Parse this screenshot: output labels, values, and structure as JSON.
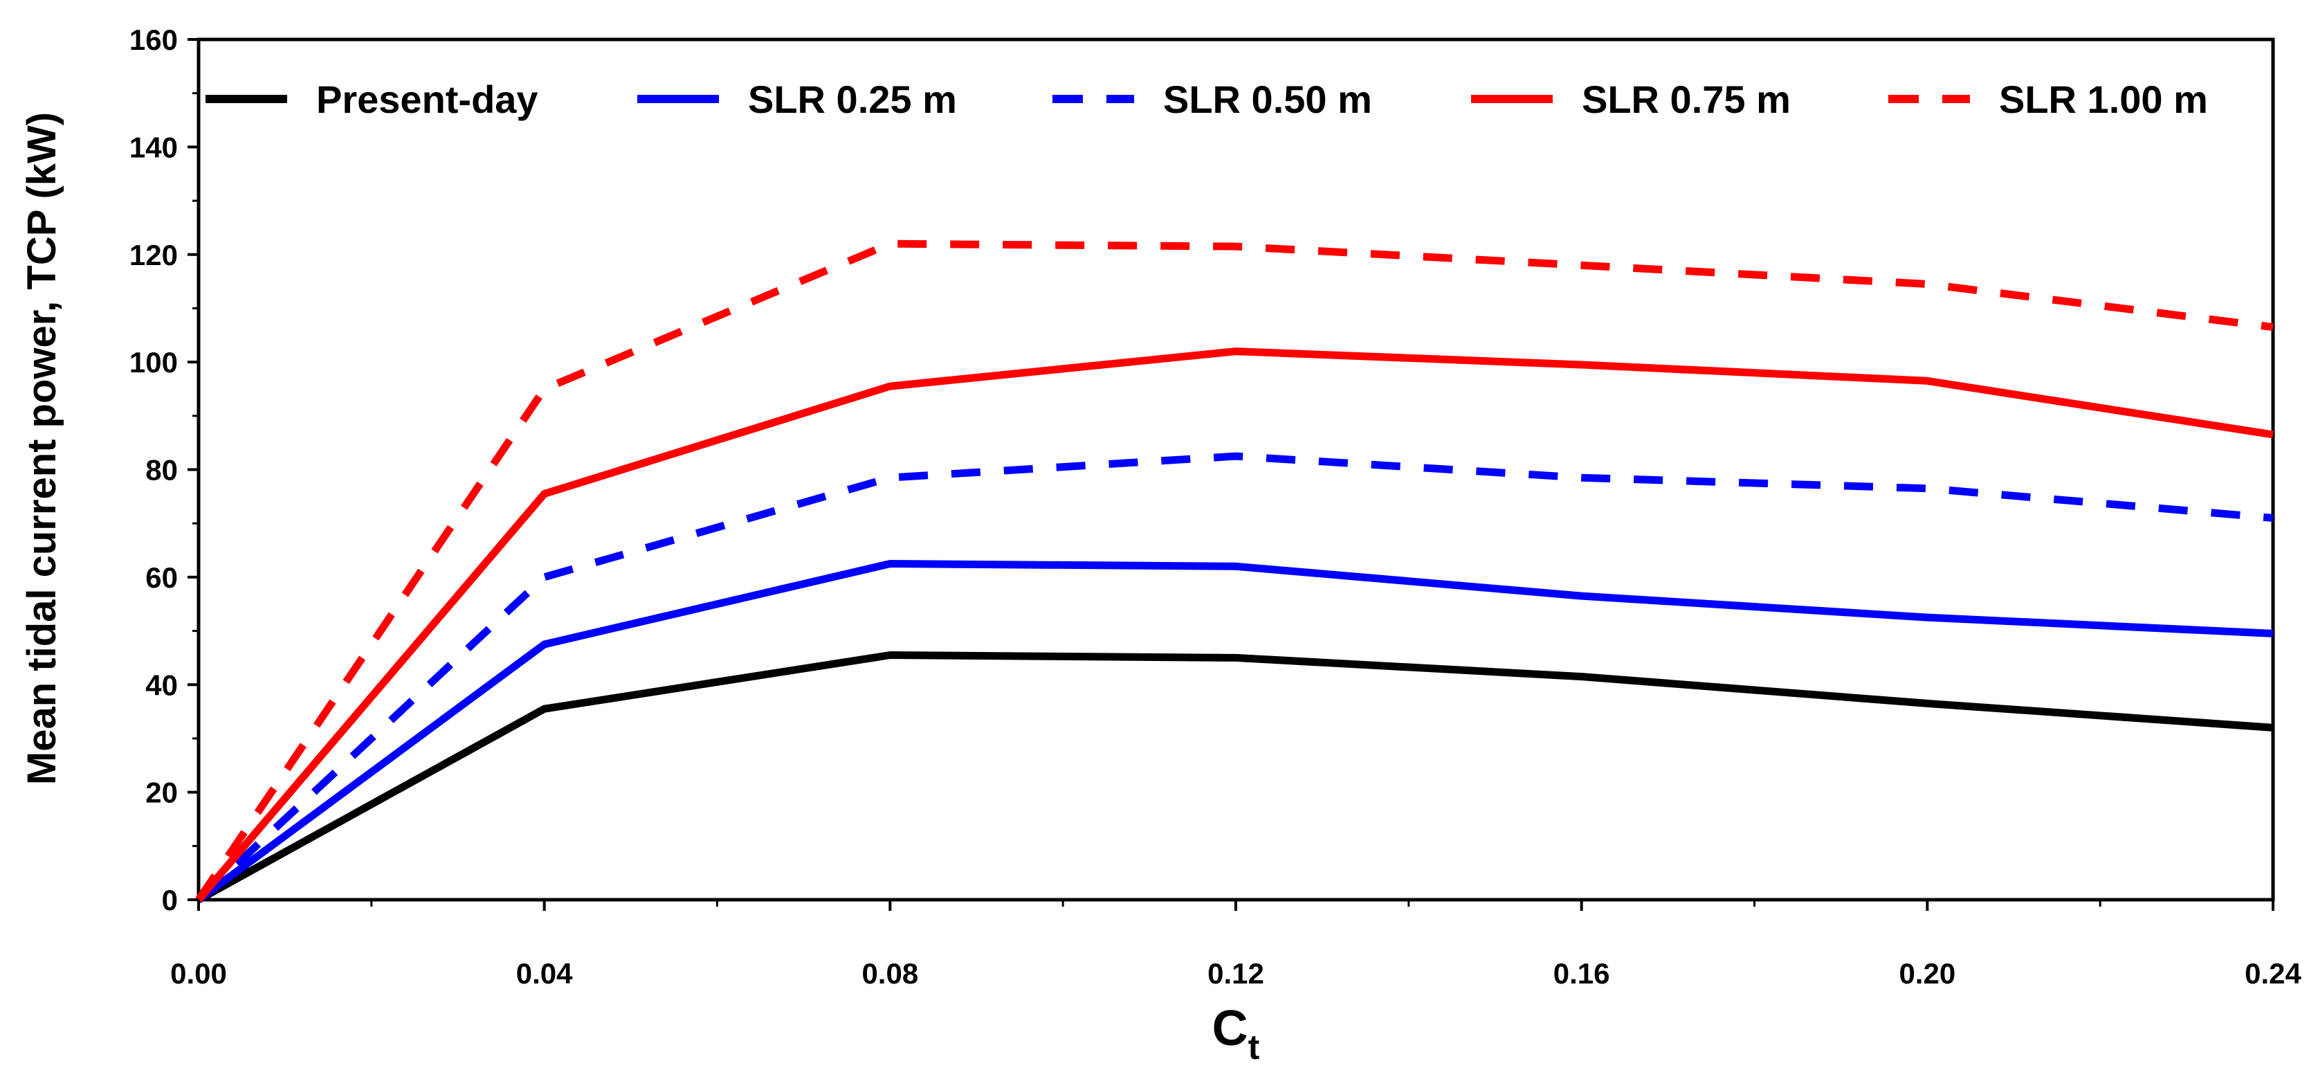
{
  "chart_data": {
    "type": "line",
    "title": "",
    "xlabel_main": "C",
    "xlabel_sub": "t",
    "ylabel": "Mean tidal current power, TCP (kW)",
    "x": [
      0.0,
      0.04,
      0.08,
      0.12,
      0.16,
      0.2,
      0.24
    ],
    "xlim": [
      0,
      0.24
    ],
    "ylim": [
      0,
      160
    ],
    "xticks": [
      "0.00",
      "0.04",
      "0.08",
      "0.12",
      "0.16",
      "0.20",
      "0.24"
    ],
    "yticks": [
      "0",
      "20",
      "40",
      "60",
      "80",
      "100",
      "120",
      "140",
      "160"
    ],
    "grid": false,
    "legend_position": "top",
    "series": [
      {
        "name": "Present-day",
        "color": "#000000",
        "style": "solid",
        "values": [
          0,
          35.5,
          45.5,
          45,
          41.5,
          36.5,
          32
        ]
      },
      {
        "name": "SLR 0.25 m",
        "color": "#0000ff",
        "style": "solid",
        "values": [
          0,
          47.5,
          62.5,
          62,
          56.5,
          52.5,
          49.5
        ]
      },
      {
        "name": "SLR 0.50 m",
        "color": "#0000ff",
        "style": "dashed",
        "values": [
          0,
          60,
          78.5,
          82.5,
          78.5,
          76.5,
          71
        ]
      },
      {
        "name": "SLR 0.75 m",
        "color": "#ff0000",
        "style": "solid",
        "values": [
          0,
          75.5,
          95.5,
          102,
          99.5,
          96.5,
          86.5
        ]
      },
      {
        "name": "SLR 1.00 m",
        "color": "#ff0000",
        "style": "dashed",
        "values": [
          0,
          95,
          122,
          121.5,
          118,
          114.5,
          106.5
        ]
      }
    ]
  }
}
